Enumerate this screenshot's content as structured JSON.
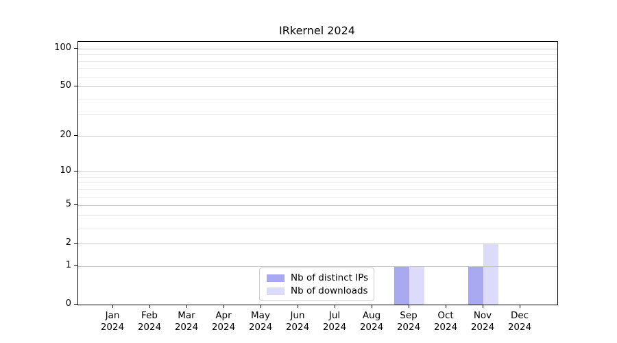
{
  "page": {
    "background": "#ffffff"
  },
  "chart_data": {
    "type": "bar",
    "title": "IRkernel 2024",
    "categories": [
      "Jan",
      "Feb",
      "Mar",
      "Apr",
      "May",
      "Jun",
      "Jul",
      "Aug",
      "Sep",
      "Oct",
      "Nov",
      "Dec"
    ],
    "year": "2024",
    "series": [
      {
        "name": "Nb of distinct IPs",
        "color": "#a9a9f1",
        "values": [
          0,
          0,
          0,
          0,
          0,
          0,
          0,
          0,
          1,
          0,
          1,
          0
        ]
      },
      {
        "name": "Nb of downloads",
        "color": "#dcdcfa",
        "values": [
          0,
          0,
          0,
          0,
          0,
          0,
          0,
          0,
          1,
          0,
          2,
          0
        ]
      }
    ],
    "yscale": "log1p",
    "ylim": [
      0,
      113
    ],
    "y_ticks": [
      0,
      1,
      2,
      5,
      10,
      20,
      50,
      100
    ],
    "y_minor_ticks": [
      3,
      4,
      6,
      7,
      8,
      9,
      30,
      40,
      60,
      70,
      80,
      90
    ],
    "xlabel": "",
    "ylabel": "",
    "grid": true,
    "legend": {
      "entries": [
        "Nb of distinct IPs",
        "Nb of downloads"
      ],
      "location": "lower center"
    }
  },
  "colors": {
    "axis": "#000000",
    "major_grid": "#c8c8c8",
    "minor_grid": "#eaeaea",
    "legend_border": "#cccccc",
    "legend_bg": "#ffffff",
    "text": "#000000"
  }
}
